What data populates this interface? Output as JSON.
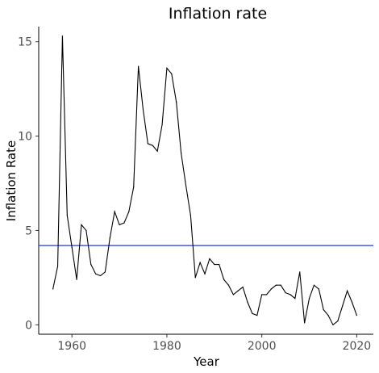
{
  "chart_data": {
    "type": "line",
    "title": "Inflation rate",
    "xlabel": "Year",
    "ylabel": "Inflation Rate",
    "xlim": [
      1953,
      2023.5
    ],
    "ylim": [
      -0.5,
      15.8
    ],
    "xticks": [
      1960,
      1980,
      2000,
      2020
    ],
    "yticks": [
      0,
      5,
      10,
      15
    ],
    "grid": false,
    "colors": {
      "line": "#000000",
      "reference": "#1f3fd1"
    },
    "reference_line": {
      "orientation": "horizontal",
      "y": 4.2
    },
    "series": [
      {
        "x": [
          1956,
          1957,
          1958,
          1959,
          1960,
          1961,
          1962,
          1963,
          1964,
          1965,
          1966,
          1967,
          1968,
          1969,
          1970,
          1971,
          1972,
          1973,
          1974,
          1975,
          1976,
          1977,
          1978,
          1979,
          1980,
          1981,
          1982,
          1983,
          1984,
          1985,
          1986,
          1987,
          1988,
          1989,
          1990,
          1991,
          1992,
          1993,
          1994,
          1995,
          1996,
          1997,
          1998,
          1999,
          2000,
          2001,
          2002,
          2003,
          2004,
          2005,
          2006,
          2007,
          2008,
          2009,
          2010,
          2011,
          2012,
          2013,
          2014,
          2015,
          2016,
          2017,
          2018,
          2019,
          2020
        ],
        "y": [
          1.9,
          3.1,
          15.3,
          5.8,
          4.1,
          2.4,
          5.3,
          5.0,
          3.2,
          2.7,
          2.6,
          2.8,
          4.6,
          6.0,
          5.3,
          5.4,
          6.0,
          7.3,
          13.7,
          11.4,
          9.6,
          9.5,
          9.2,
          10.6,
          13.6,
          13.3,
          11.8,
          9.1,
          7.4,
          5.8,
          2.5,
          3.3,
          2.7,
          3.5,
          3.2,
          3.2,
          2.4,
          2.1,
          1.6,
          1.8,
          2.0,
          1.2,
          0.6,
          0.5,
          1.6,
          1.6,
          1.9,
          2.1,
          2.1,
          1.7,
          1.6,
          1.4,
          2.8,
          0.1,
          1.4,
          2.1,
          1.9,
          0.8,
          0.5,
          0.0,
          0.2,
          1.0,
          1.8,
          1.2,
          0.5
        ]
      }
    ]
  }
}
